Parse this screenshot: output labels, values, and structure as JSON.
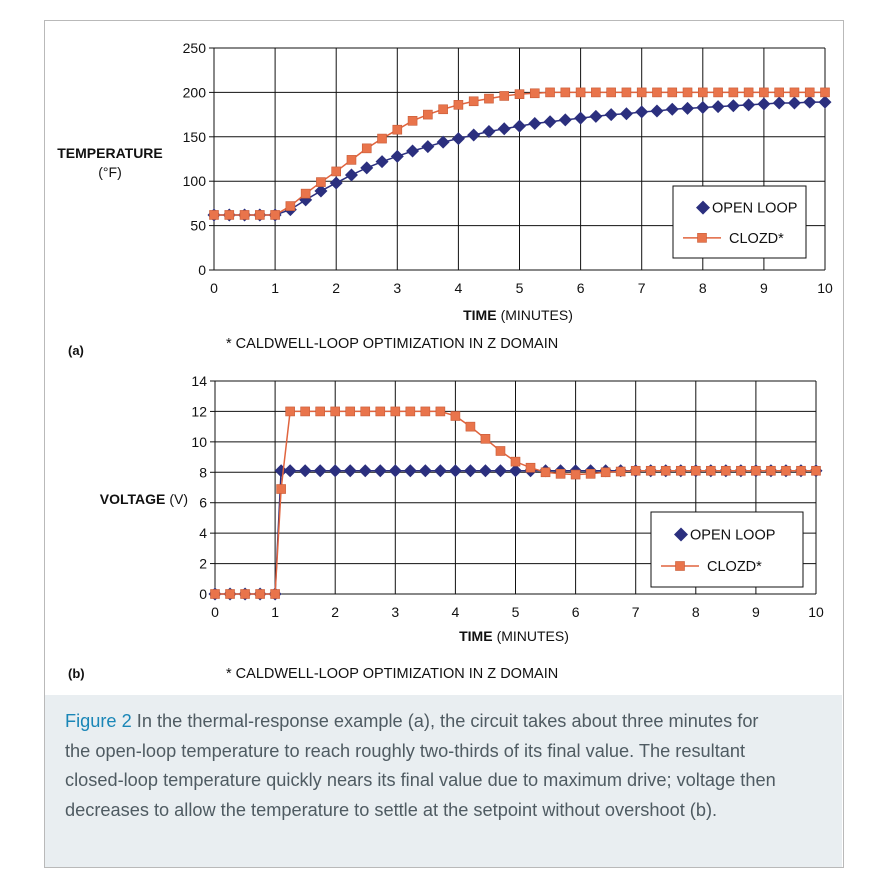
{
  "caption": {
    "label": "Figure 2",
    "text": " In the thermal-response example (a), the circuit takes about three minutes for the open-loop temperature to reach roughly two-thirds of its final value. The resultant closed-loop temperature quickly nears its final value due to maximum drive; voltage then decreases to allow the temperature to settle at the setpoint without overshoot (b)."
  },
  "colors": {
    "open_loop": "#2b2f7e",
    "closed_loop": "#e9744b",
    "closed_loop_line": "#e0643e",
    "grid": "#111111"
  },
  "chart_data": [
    {
      "type": "line",
      "panel_label": "(a)",
      "ylabel": "TEMPERATURE",
      "ylabel_unit": "(°F)",
      "xlabel": "TIME",
      "xlabel_unit": "(MINUTES)",
      "footnote": "* CALDWELL-LOOP OPTIMIZATION IN Z DOMAIN",
      "xlim": [
        0,
        10
      ],
      "ylim": [
        0,
        250
      ],
      "x_ticks": [
        "0",
        "1",
        "2",
        "3",
        "4",
        "5",
        "6",
        "7",
        "8",
        "9",
        "10"
      ],
      "y_ticks": [
        "0",
        "50",
        "100",
        "150",
        "200",
        "250"
      ],
      "grid": true,
      "legend_position": "bottom-right",
      "x": [
        0,
        0.25,
        0.5,
        0.75,
        1.0,
        1.25,
        1.5,
        1.75,
        2.0,
        2.25,
        2.5,
        2.75,
        3.0,
        3.25,
        3.5,
        3.75,
        4.0,
        4.25,
        4.5,
        4.75,
        5.0,
        5.25,
        5.5,
        5.75,
        6.0,
        6.25,
        6.5,
        6.75,
        7.0,
        7.25,
        7.5,
        7.75,
        8.0,
        8.25,
        8.5,
        8.75,
        9.0,
        9.25,
        9.5,
        9.75,
        10.0
      ],
      "series": [
        {
          "name": "OPEN LOOP",
          "marker": "diamond",
          "values": [
            62,
            62,
            62,
            62,
            62,
            68,
            79,
            89,
            98,
            107,
            115,
            122,
            128,
            134,
            139,
            144,
            148,
            152,
            156,
            159,
            162,
            165,
            167,
            169,
            171,
            173,
            175,
            176,
            178,
            179,
            181,
            182,
            183,
            184,
            185,
            186,
            187,
            188,
            188,
            189,
            189
          ]
        },
        {
          "name": "CLOZD*",
          "marker": "square",
          "values": [
            62,
            62,
            62,
            62,
            62,
            72,
            86,
            99,
            111,
            124,
            137,
            148,
            158,
            168,
            175,
            181,
            186,
            190,
            193,
            196,
            198,
            199,
            200,
            200,
            200,
            200,
            200,
            200,
            200,
            200,
            200,
            200,
            200,
            200,
            200,
            200,
            200,
            200,
            200,
            200,
            200
          ]
        }
      ]
    },
    {
      "type": "line",
      "panel_label": "(b)",
      "ylabel": "VOLTAGE",
      "ylabel_unit": "(V)",
      "xlabel": "TIME",
      "xlabel_unit": "(MINUTES)",
      "footnote": "* CALDWELL-LOOP OPTIMIZATION IN Z DOMAIN",
      "xlim": [
        0,
        10
      ],
      "ylim": [
        0,
        14
      ],
      "x_ticks": [
        "0",
        "1",
        "2",
        "3",
        "4",
        "5",
        "6",
        "7",
        "8",
        "9",
        "10"
      ],
      "y_ticks": [
        "0",
        "2",
        "4",
        "6",
        "8",
        "10",
        "12",
        "14"
      ],
      "grid": true,
      "legend_position": "bottom-right",
      "x": [
        0,
        0.25,
        0.5,
        0.75,
        1.0,
        1.1,
        1.25,
        1.5,
        1.75,
        2.0,
        2.25,
        2.5,
        2.75,
        3.0,
        3.25,
        3.5,
        3.75,
        4.0,
        4.25,
        4.5,
        4.75,
        5.0,
        5.25,
        5.5,
        5.75,
        6.0,
        6.25,
        6.5,
        6.75,
        7.0,
        7.25,
        7.5,
        7.75,
        8.0,
        8.25,
        8.5,
        8.75,
        9.0,
        9.25,
        9.5,
        9.75,
        10.0
      ],
      "series": [
        {
          "name": "OPEN LOOP",
          "marker": "diamond",
          "values": [
            0,
            0,
            0,
            0,
            0,
            8.1,
            8.1,
            8.1,
            8.1,
            8.1,
            8.1,
            8.1,
            8.1,
            8.1,
            8.1,
            8.1,
            8.1,
            8.1,
            8.1,
            8.1,
            8.1,
            8.1,
            8.1,
            8.1,
            8.1,
            8.1,
            8.1,
            8.1,
            8.1,
            8.1,
            8.1,
            8.1,
            8.1,
            8.1,
            8.1,
            8.1,
            8.1,
            8.1,
            8.1,
            8.1,
            8.1,
            8.1
          ]
        },
        {
          "name": "CLOZD*",
          "marker": "square",
          "values": [
            0,
            0,
            0,
            0,
            0,
            6.9,
            12,
            12,
            12,
            12,
            12,
            12,
            12,
            12,
            12,
            12,
            12,
            11.7,
            11.0,
            10.2,
            9.4,
            8.7,
            8.3,
            8.0,
            7.9,
            7.85,
            7.9,
            8.0,
            8.05,
            8.1,
            8.1,
            8.1,
            8.1,
            8.1,
            8.1,
            8.1,
            8.1,
            8.1,
            8.1,
            8.1,
            8.1,
            8.1
          ]
        }
      ]
    }
  ]
}
